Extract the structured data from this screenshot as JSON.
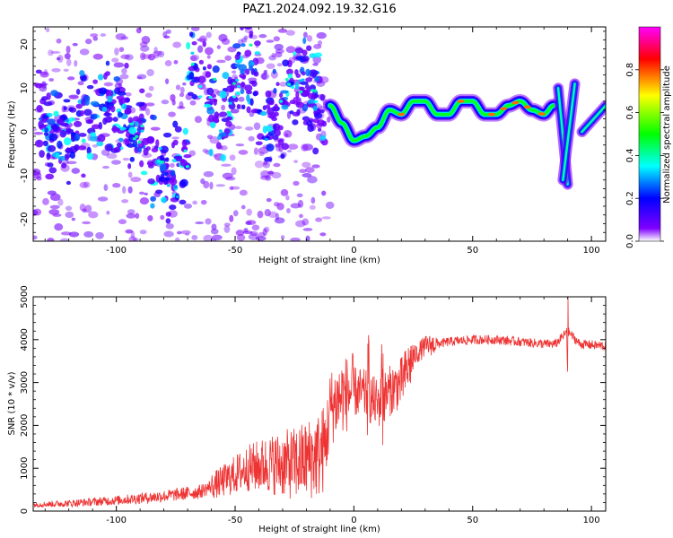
{
  "title": "PAZ1.2024.092.19.32.G16",
  "chart_data": [
    {
      "type": "heatmap",
      "xlabel": "Height of straight line (km)",
      "ylabel": "Frequency (Hz)",
      "xlim": [
        -135,
        106
      ],
      "ylim": [
        -25,
        24
      ],
      "xticks": [
        -100,
        -50,
        0,
        50,
        100
      ],
      "yticks": [
        -20,
        -10,
        0,
        10,
        20
      ],
      "colorbar": {
        "label": "Normalized spectral amplitude",
        "range": [
          0.0,
          1.0
        ],
        "ticks": [
          0.0,
          0.2,
          0.4,
          0.6,
          0.8
        ],
        "tick_labels": [
          "0.0",
          "0.2",
          "0.4",
          "0.6",
          "0.8"
        ],
        "colormap": [
          "#ffffff",
          "#7f00ff",
          "#0000ff",
          "#00ffff",
          "#00ff00",
          "#ffff00",
          "#ff0000",
          "#ff00ff"
        ]
      },
      "ridge": {
        "x": [
          -10,
          -5,
          0,
          5,
          10,
          15,
          20,
          25,
          30,
          35,
          40,
          45,
          50,
          55,
          60,
          65,
          70,
          75,
          80,
          84
        ],
        "y": [
          6,
          2,
          -2,
          -1,
          1,
          5,
          4,
          7,
          7,
          4,
          4,
          7,
          7,
          4,
          4,
          6,
          7,
          5,
          4,
          6
        ]
      },
      "streaks": [
        {
          "x": [
            86,
            90
          ],
          "y": [
            10,
            -12
          ]
        },
        {
          "x": [
            93,
            88
          ],
          "y": [
            11,
            -11
          ]
        },
        {
          "x": [
            96,
            106
          ],
          "y": [
            0,
            6
          ]
        }
      ]
    },
    {
      "type": "line",
      "xlabel": "Height of straight line (km)",
      "ylabel": "SNR (10 * v/v)",
      "xlim": [
        -135,
        106
      ],
      "ylim": [
        0,
        5000
      ],
      "xticks": [
        -100,
        -50,
        0,
        50,
        100
      ],
      "yticks": [
        0,
        1000,
        2000,
        3000,
        4000,
        5000
      ],
      "color": "#ee3333",
      "series": [
        {
          "x": [
            -135,
            -120,
            -100,
            -80,
            -65,
            -55,
            -45,
            -35,
            -25,
            -15,
            -12,
            -10,
            -5,
            0,
            5,
            10,
            15,
            20,
            25,
            30,
            40,
            50,
            60,
            70,
            80,
            85,
            90,
            95,
            106
          ],
          "y": [
            150,
            180,
            250,
            350,
            450,
            700,
            1000,
            1100,
            1100,
            1300,
            1500,
            2400,
            2700,
            2800,
            2700,
            2500,
            2800,
            3000,
            3600,
            3850,
            3950,
            4000,
            4000,
            3950,
            3900,
            3900,
            4200,
            3900,
            3850
          ]
        }
      ]
    }
  ]
}
